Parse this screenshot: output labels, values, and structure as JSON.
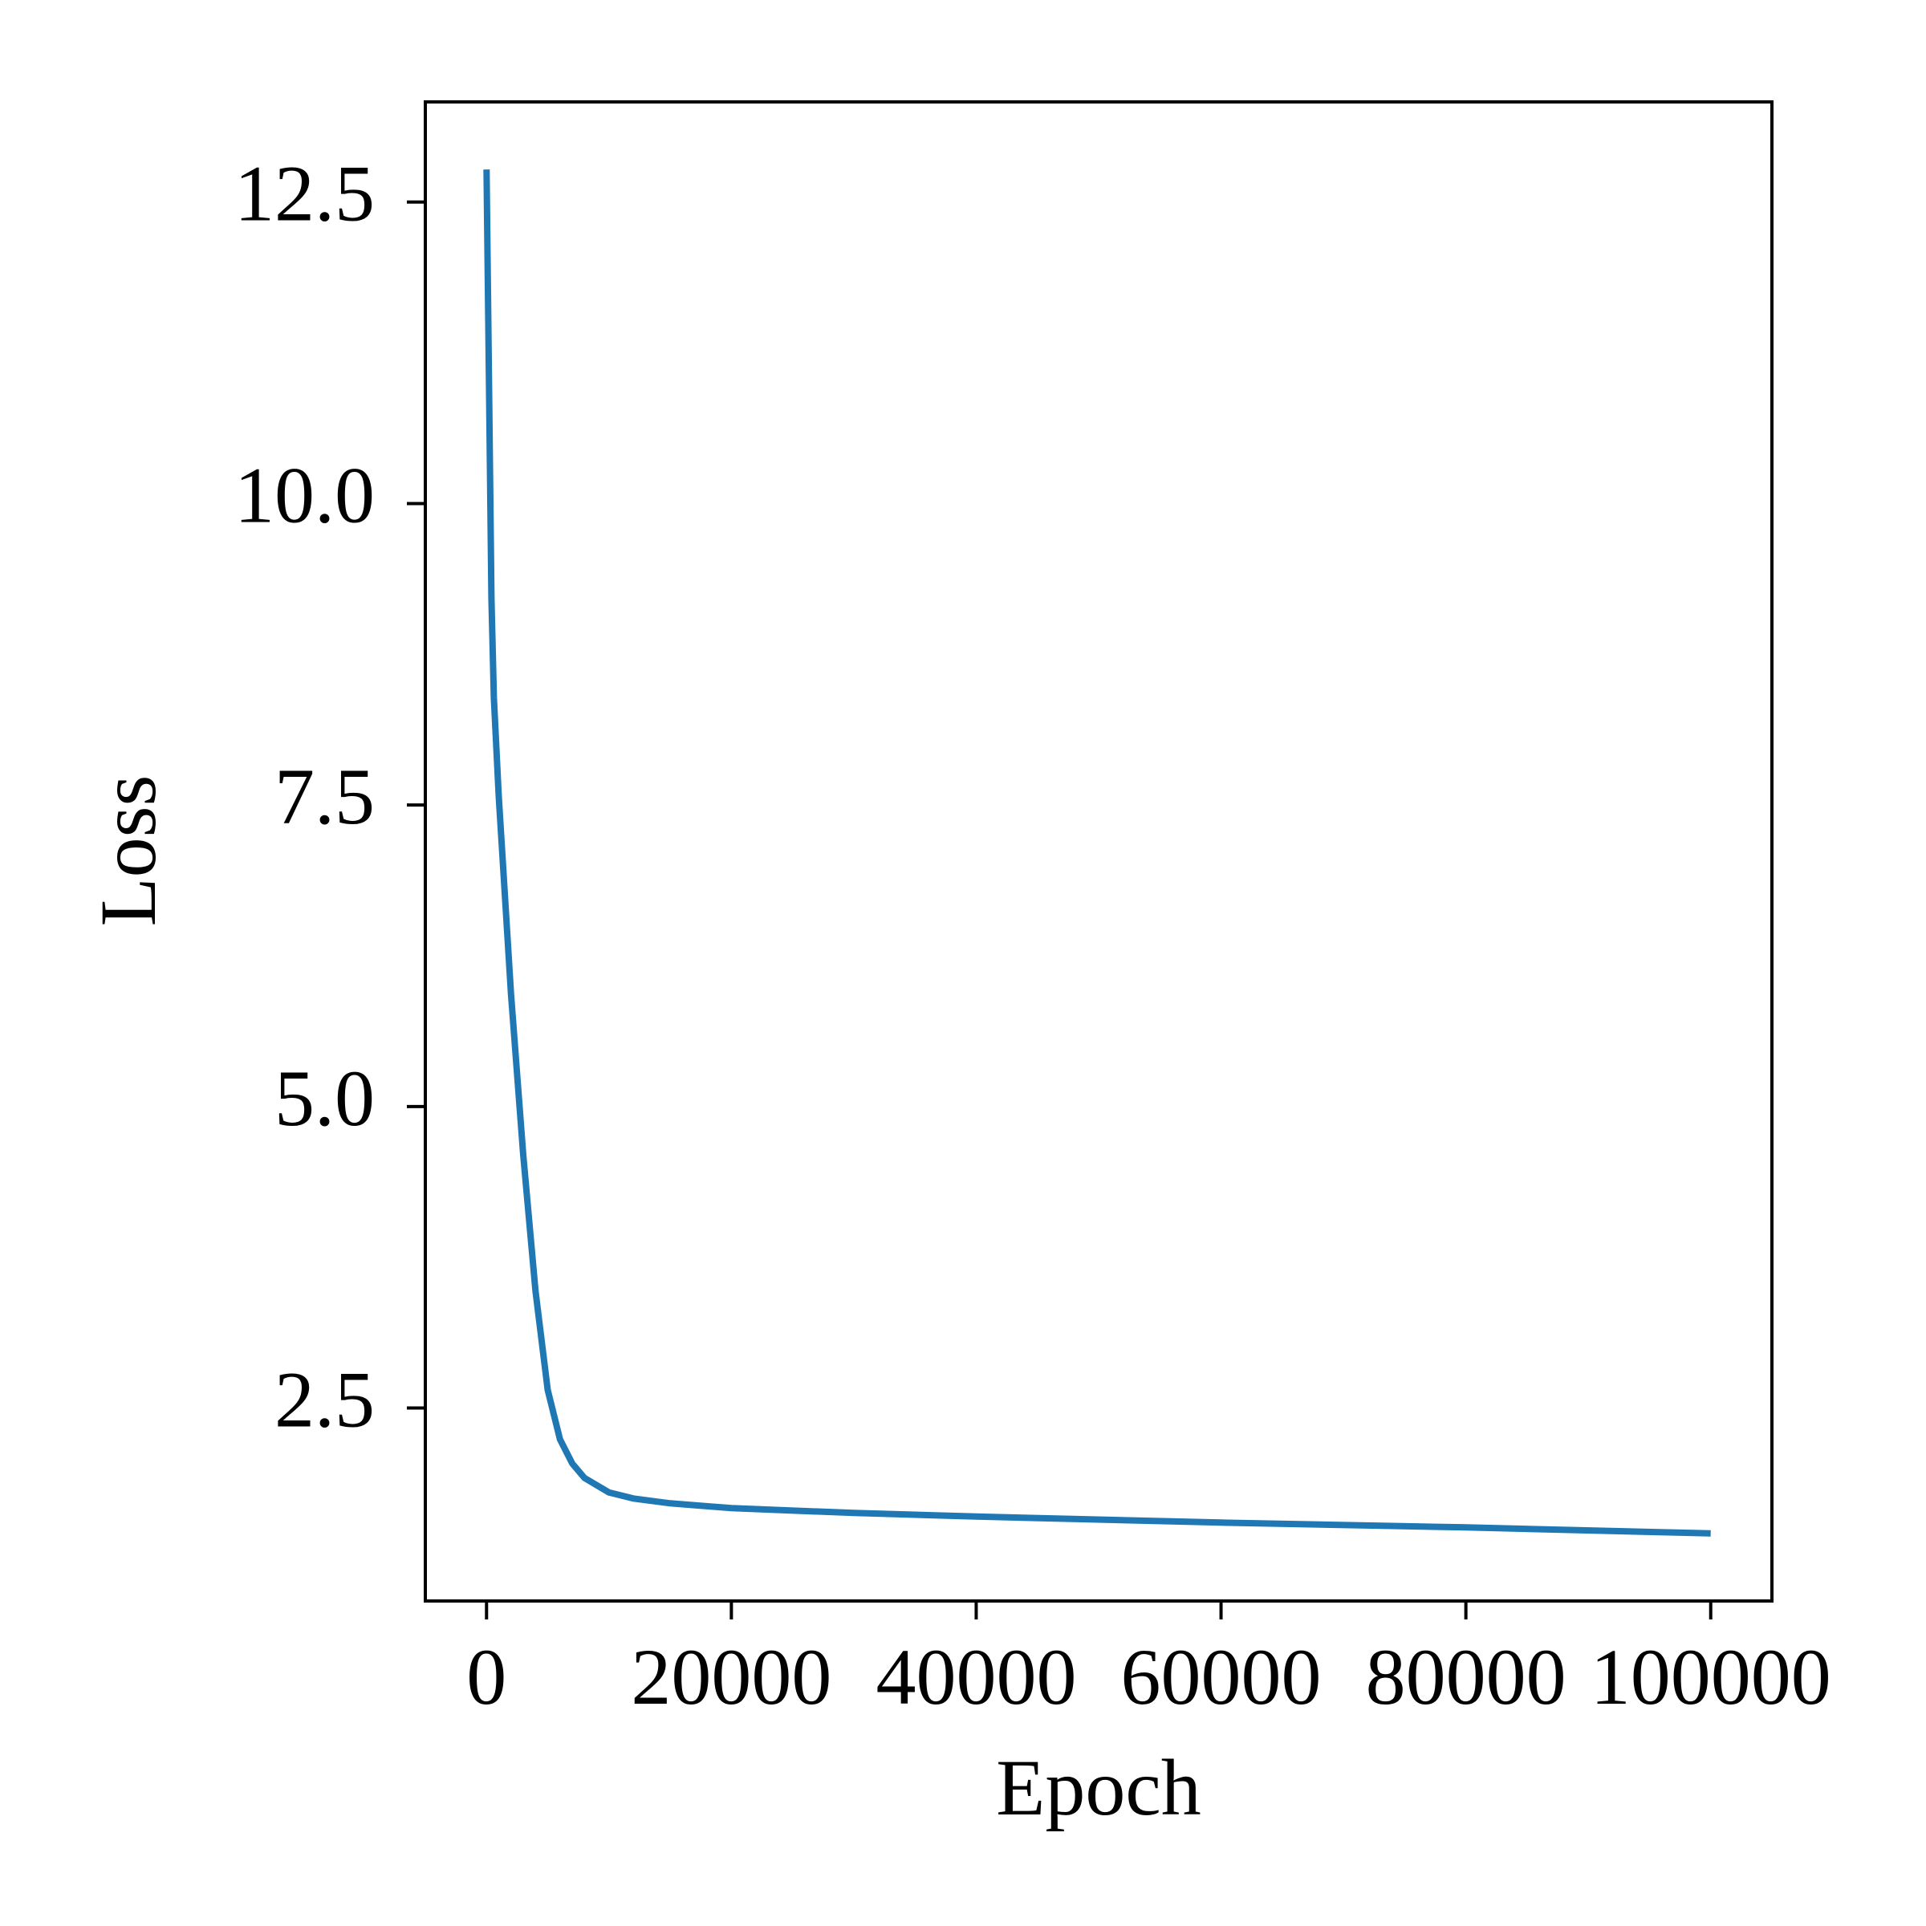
{
  "chart_data": {
    "type": "line",
    "x_label": "Epoch",
    "y_label": "Loss",
    "x": [
      0,
      400,
      600,
      1000,
      2000,
      3000,
      4000,
      5000,
      6000,
      7000,
      8000,
      10000,
      12000,
      15000,
      20000,
      30000,
      40000,
      60000,
      80000,
      100000
    ],
    "series": [
      {
        "name": "Loss",
        "color": "#1f77b4",
        "values": [
          12.77,
          9.21,
          8.39,
          7.57,
          5.93,
          4.6,
          3.47,
          2.65,
          2.24,
          2.04,
          1.92,
          1.8,
          1.75,
          1.71,
          1.67,
          1.63,
          1.6,
          1.55,
          1.51,
          1.46
        ]
      }
    ],
    "xlim": [
      -5000,
      105000
    ],
    "ylim": [
      0.9,
      13.33
    ],
    "xticks": [
      0,
      20000,
      40000,
      60000,
      80000,
      100000
    ],
    "yticks": [
      {
        "value": 2.5,
        "label": "2.5"
      },
      {
        "value": 5,
        "label": "5.0"
      },
      {
        "value": 7.5,
        "label": "7.5"
      },
      {
        "value": 10,
        "label": "10.0"
      },
      {
        "value": 12.5,
        "label": "12.5"
      }
    ],
    "grid": false
  }
}
